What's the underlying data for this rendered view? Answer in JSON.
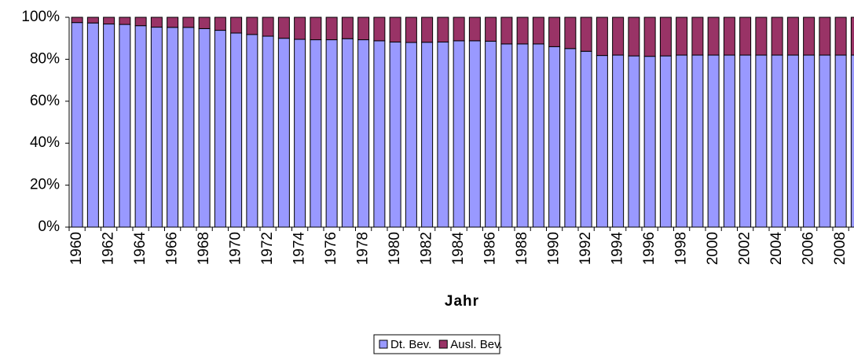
{
  "chart_data": {
    "type": "stacked_bar_100",
    "x_label": "Jahr",
    "categories": [
      "1960",
      null,
      "1962",
      null,
      "1964",
      null,
      "1966",
      null,
      "1968",
      null,
      "1970",
      null,
      "1972",
      null,
      "1974",
      null,
      "1976",
      null,
      "1978",
      null,
      "1980",
      null,
      "1982",
      null,
      "1984",
      null,
      "1986",
      null,
      "1988",
      null,
      "1990",
      null,
      "1992",
      null,
      "1994",
      null,
      "1996",
      null,
      "1998",
      null,
      "2000",
      null,
      "2002",
      null,
      "2004",
      null,
      "2006",
      null,
      "2008",
      null
    ],
    "series": [
      {
        "name": "Dt. Bev.",
        "color": "#9999ff",
        "values": [
          97.5,
          97.3,
          96.8,
          96.6,
          96,
          95.3,
          95.2,
          95.2,
          94.6,
          93.8,
          92.5,
          91.8,
          91,
          90,
          89.5,
          89.3,
          89.3,
          89.8,
          89.3,
          88.8,
          88.2,
          88,
          88.1,
          88.2,
          88.8,
          88.8,
          88.6,
          87.3,
          87.3,
          87.3,
          86,
          85.1,
          83.8,
          81.8,
          82,
          81.6,
          81.4,
          81.6,
          82,
          82,
          82,
          82,
          82,
          82,
          82,
          82,
          82,
          82,
          82,
          82
        ]
      },
      {
        "name": "Ausl. Bev.",
        "color": "#993366",
        "values": [
          2.5,
          2.7,
          3.2,
          3.4,
          4,
          4.7,
          4.8,
          4.8,
          5.4,
          6.2,
          7.5,
          8.2,
          9,
          10,
          10.5,
          10.7,
          10.7,
          10.2,
          10.7,
          11.2,
          11.8,
          12,
          11.9,
          11.8,
          11.2,
          11.2,
          11.4,
          12.7,
          12.7,
          12.7,
          14,
          14.9,
          16.2,
          18.2,
          18,
          18.4,
          18.6,
          18.4,
          18,
          18,
          18,
          18,
          18,
          18,
          18,
          18,
          18,
          18,
          18,
          18
        ]
      }
    ],
    "ylim": [
      0,
      100
    ],
    "yticks": [
      {
        "value": 0,
        "label": "0%"
      },
      {
        "value": 20,
        "label": "20%"
      },
      {
        "value": 40,
        "label": "40%"
      },
      {
        "value": 60,
        "label": "60%"
      },
      {
        "value": 80,
        "label": "80%"
      },
      {
        "value": 100,
        "label": "100%"
      }
    ],
    "legend": "bottom"
  }
}
